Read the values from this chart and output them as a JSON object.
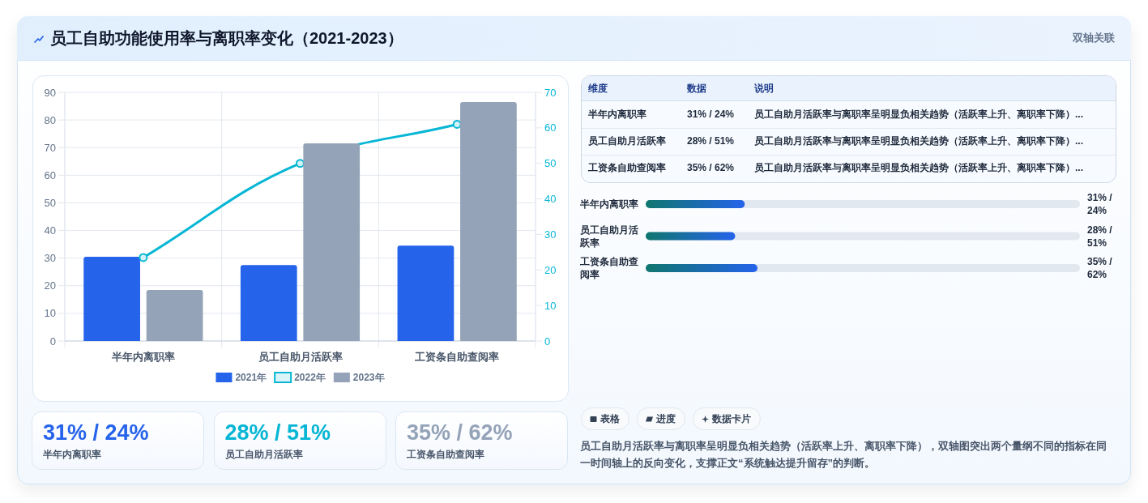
{
  "chart_data": [
    {
      "type": "other",
      "title": "员工自助功能使用率与离职率变化（2021-2023）",
      "subtitle": "双轴关联"
    },
    {
      "type": "bar",
      "categories": [
        "半年内离职率",
        "员工自助月活跃率",
        "工资条自助查阅率"
      ],
      "series": [
        {
          "name": "2021年",
          "color": "#2563eb",
          "values": [
            30.5,
            27.5,
            34.5
          ]
        },
        {
          "name": "2022年",
          "type": "line",
          "axis": "y2",
          "color": "#06b6d4",
          "values": [
            23.5,
            50,
            61
          ]
        },
        {
          "name": "2023年",
          "color": "#94a3b8",
          "values": [
            18.5,
            71.5,
            86.5
          ]
        }
      ],
      "ylim": [
        0,
        90
      ],
      "yticks": [
        0,
        10,
        20,
        30,
        40,
        50,
        60,
        70,
        80,
        90
      ],
      "y2lim": [
        0,
        70
      ],
      "y2ticks": [
        0,
        10,
        20,
        30,
        40,
        50,
        60,
        70
      ],
      "grid": true,
      "legend": "bottom",
      "marker": "circle",
      "line_style": "solid"
    },
    {
      "type": "other",
      "categories": [
        "维度",
        "数据",
        "说明"
      ],
      "annotations": [
        "半年内离职率",
        "31% / 24%",
        "员工自助月活跃率与离职率呈明显负相关趋势（活跃率上升、离职率下降）...",
        "员工自助月活跃率",
        "28% / 51%",
        "员工自助月活跃率与离职率呈明显负相关趋势（活跃率上升、离职率下降）...",
        "工资条自助查阅率",
        "35% / 62%",
        "员工自助月活跃率与离职率呈明显负相关趋势（活跃率上升、离职率下降）..."
      ]
    },
    {
      "type": "bar",
      "orientation": "horizontal",
      "categories": [
        "半年内离职率",
        "员工自助月活跃率",
        "工资条自助查阅率"
      ],
      "values": [
        31,
        28,
        35
      ],
      "value_labels": [
        "31% / 24%",
        "28% / 51%",
        "35% / 62%"
      ],
      "color": "#2563eb"
    },
    {
      "type": "other",
      "categories": [
        "半年内离职率",
        "员工自助月活跃率",
        "工资条自助查阅率"
      ],
      "annotations": [
        "31% / 24%",
        "28% / 51%",
        "35% / 62%"
      ]
    },
    {
      "type": "other",
      "categories": [
        "表格",
        "进度",
        "数据卡片"
      ],
      "annotations": [
        "员工自助月活跃率与离职率呈明显负相关趋势（活跃率上升、离职率下降），双轴图突出两个量纲不同的指标在同一时间轴上的反向变化，支撑正文“系统触达提升留存”的判断。"
      ]
    }
  ]
}
